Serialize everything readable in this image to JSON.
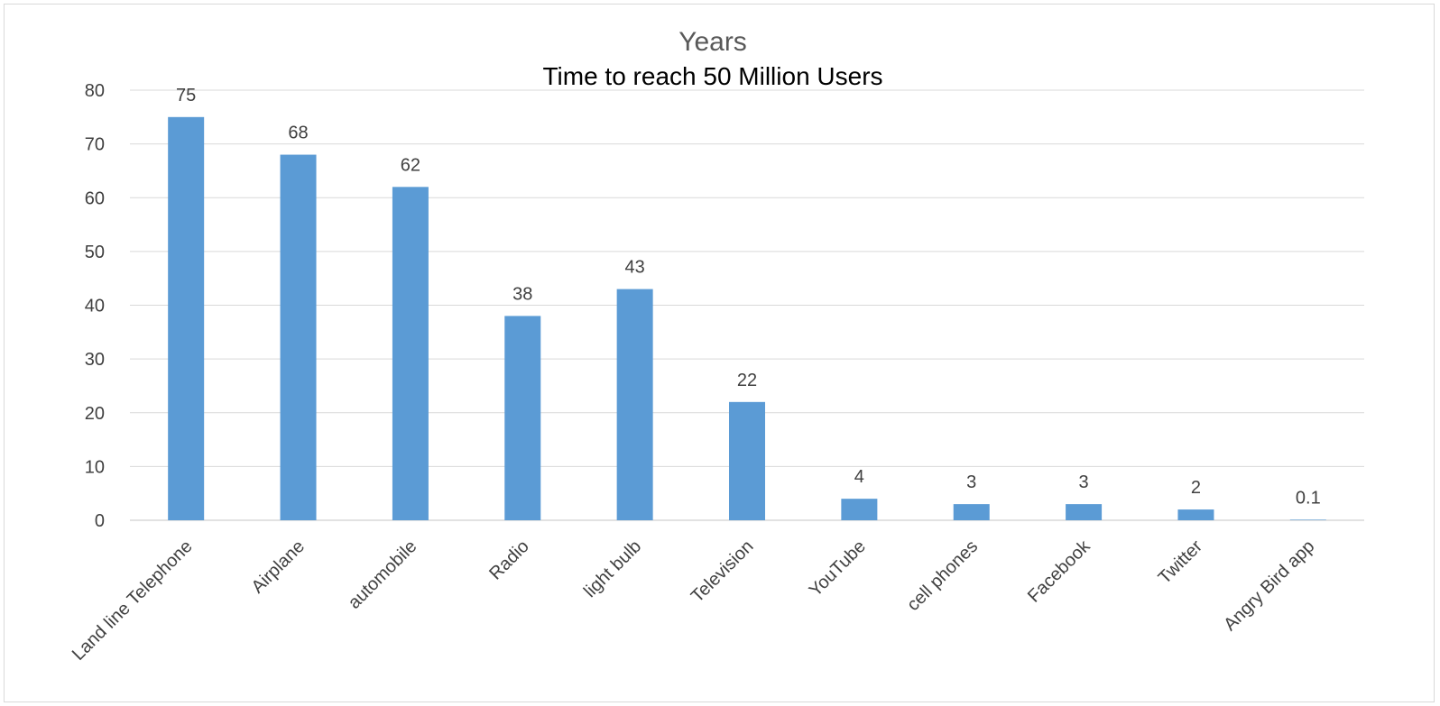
{
  "chart_data": {
    "type": "bar",
    "title": "Years",
    "subtitle": "Time to reach 50 Million Users",
    "xlabel": "",
    "ylabel": "",
    "ylim": [
      0,
      80
    ],
    "yticks": [
      0,
      10,
      20,
      30,
      40,
      50,
      60,
      70,
      80
    ],
    "grid": true,
    "legend": "none",
    "bar_color": "#5b9bd5",
    "categories": [
      "Land line Telephone",
      "Airplane",
      "automobile",
      "Radio",
      "light bulb",
      "Television",
      "YouTube",
      "cell phones",
      "Facebook",
      "Twitter",
      "Angry Bird app"
    ],
    "values": [
      75,
      68,
      62,
      38,
      43,
      22,
      4,
      3,
      3,
      2,
      0.1
    ],
    "data_labels": [
      "75",
      "68",
      "62",
      "38",
      "43",
      "22",
      "4",
      "3",
      "3",
      "2",
      "0.1"
    ]
  }
}
